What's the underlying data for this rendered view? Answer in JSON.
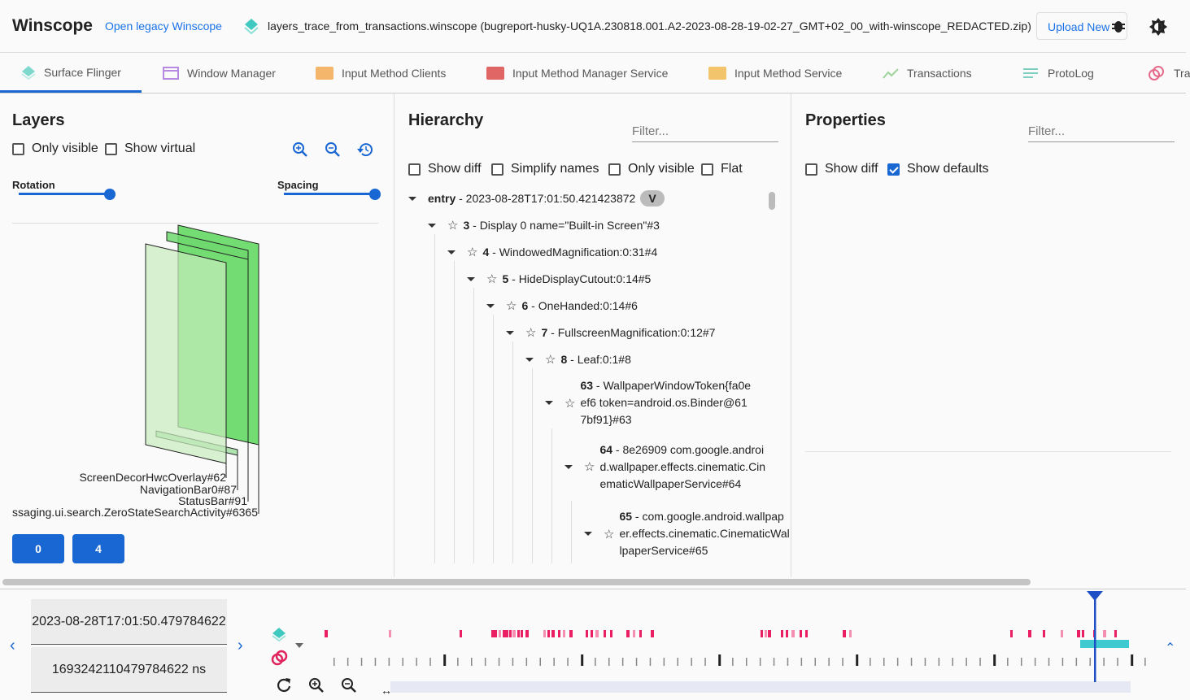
{
  "header": {
    "title": "Winscope",
    "legacy_link": "Open legacy Winscope",
    "file_name": "layers_trace_from_transactions.winscope (bugreport-husky-UQ1A.230818.001.A2-2023-08-28-19-02-27_GMT+02_00_with-winscope_REDACTED.zip)",
    "upload_label": "Upload New",
    "icons": [
      "layers-icon",
      "bug-icon",
      "theme-toggle-icon"
    ]
  },
  "tabs": [
    {
      "label": "Surface Flinger",
      "icon": "layers-icon",
      "active": true
    },
    {
      "label": "Window Manager",
      "icon": "window-icon"
    },
    {
      "label": "Input Method Clients",
      "icon": "keyboard-icon"
    },
    {
      "label": "Input Method Manager Service",
      "icon": "keyboard-icon"
    },
    {
      "label": "Input Method Service",
      "icon": "keyboard-icon"
    },
    {
      "label": "Transactions",
      "icon": "chart-line-icon"
    },
    {
      "label": "ProtoLog",
      "icon": "list-icon"
    },
    {
      "label": "Tra",
      "icon": "rings-icon"
    }
  ],
  "layers": {
    "title": "Layers",
    "only_visible": "Only visible",
    "show_virtual": "Show virtual",
    "rotation": "Rotation",
    "spacing": "Spacing",
    "rotation_value": 1.0,
    "spacing_value": 1.0,
    "labels": [
      "ScreenDecorHwcOverlay#62",
      "NavigationBar0#87",
      "StatusBar#91",
      "ssaging.ui.search.ZeroStateSearchActivity#6365"
    ],
    "display_buttons": [
      "0",
      "4"
    ]
  },
  "hierarchy": {
    "title": "Hierarchy",
    "filter_placeholder": "Filter...",
    "options": [
      "Show diff",
      "Simplify names",
      "Only visible",
      "Flat"
    ],
    "nodes": [
      {
        "depth": 0,
        "id": "entry",
        "rest": " - 2023-08-28T17:01:50.421423872",
        "badge": "V",
        "star": false
      },
      {
        "depth": 1,
        "id": "3",
        "rest": " - Display 0 name=\"Built-in Screen\"#3",
        "star": true
      },
      {
        "depth": 2,
        "id": "4",
        "rest": " - WindowedMagnification:0:31#4",
        "star": true
      },
      {
        "depth": 3,
        "id": "5",
        "rest": " - HideDisplayCutout:0:14#5",
        "star": true
      },
      {
        "depth": 4,
        "id": "6",
        "rest": " - OneHanded:0:14#6",
        "star": true
      },
      {
        "depth": 5,
        "id": "7",
        "rest": " - FullscreenMagnification:0:12#7",
        "star": true
      },
      {
        "depth": 6,
        "id": "8",
        "rest": " - Leaf:0:1#8",
        "star": true
      },
      {
        "depth": 7,
        "id": "63",
        "rest": " - WallpaperWindowToken{fa0eef6 token=android.os.Binder@617bf91}#63",
        "star": true
      },
      {
        "depth": 8,
        "id": "64",
        "rest": " - 8e26909 com.google.android.wallpaper.effects.cinematic.CinematicWallpaperService#64",
        "star": true
      },
      {
        "depth": 9,
        "id": "65",
        "rest": " - com.google.android.wallpaper.effects.cinematic.CinematicWallpaperService#65",
        "star": true
      }
    ]
  },
  "properties": {
    "title": "Properties",
    "filter_placeholder": "Filter...",
    "show_diff": "Show diff",
    "show_defaults": "Show defaults",
    "show_defaults_checked": true
  },
  "timeline": {
    "timestamp": "2023-08-28T17:01:50.479784622",
    "timestamp_ns": "1693242110479784622 ns",
    "trace_icons": [
      "layers-icon",
      "rings-icon"
    ],
    "controls": [
      "reset-icon",
      "zoom-in-icon",
      "zoom-out-icon"
    ]
  },
  "colors": {
    "accent": "#1967d2",
    "entry_mark": "#e91e63",
    "cursor": "#1e4fc4",
    "selection": "#3fc9d0"
  }
}
